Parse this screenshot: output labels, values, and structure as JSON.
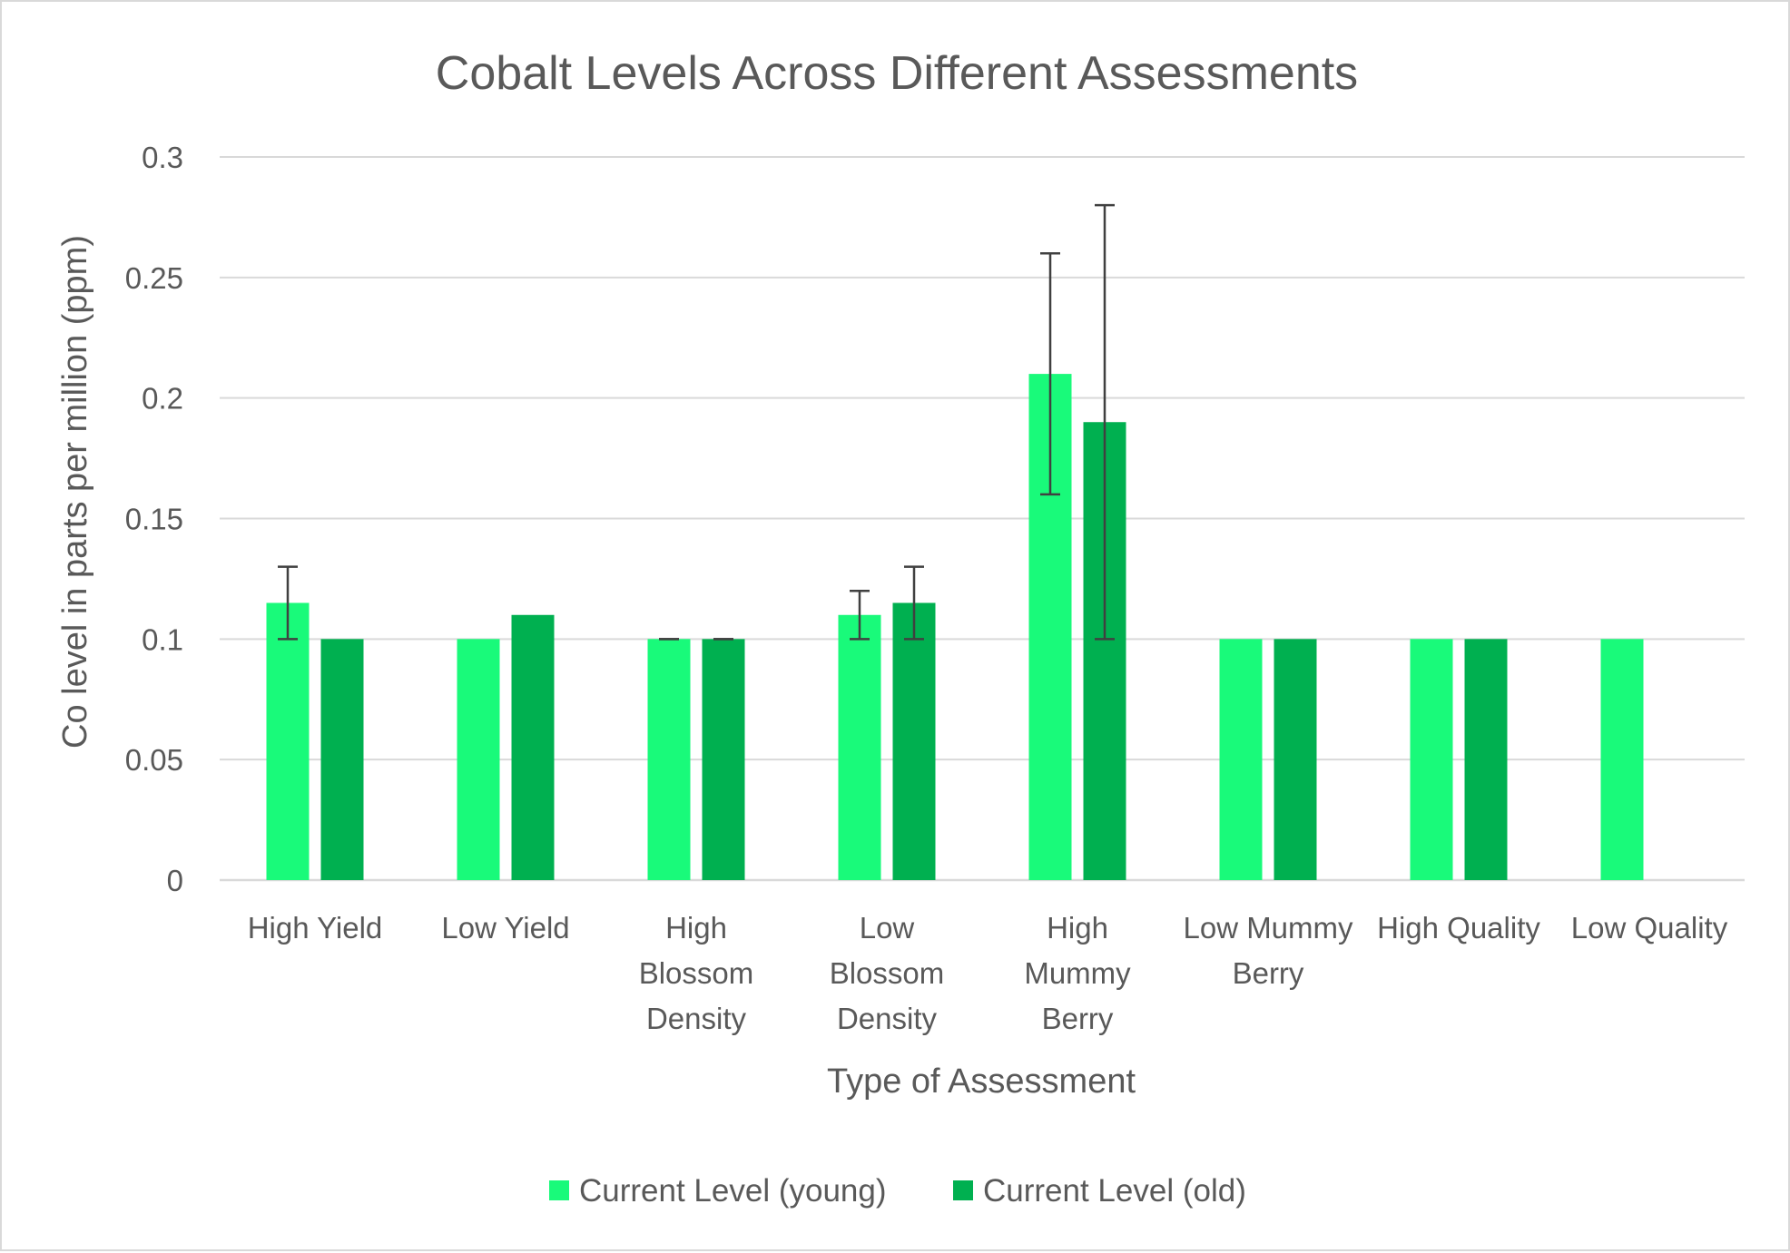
{
  "chart_data": {
    "type": "bar",
    "title": "Cobalt Levels Across Different Assessments",
    "xlabel": "Type of Assessment",
    "ylabel": "Co level in parts per million (ppm)",
    "ylim": [
      0,
      0.3
    ],
    "yticks": [
      "0",
      "0.05",
      "0.1",
      "0.15",
      "0.2",
      "0.25",
      "0.3"
    ],
    "grid": true,
    "legend_position": "bottom",
    "categories": [
      [
        "High Yield"
      ],
      [
        "Low Yield"
      ],
      [
        "High",
        "Blossom",
        "Density"
      ],
      [
        "Low",
        "Blossom",
        "Density"
      ],
      [
        "High",
        "Mummy",
        "Berry"
      ],
      [
        "Low Mummy",
        "Berry"
      ],
      [
        "High Quality"
      ],
      [
        "Low Quality"
      ]
    ],
    "series": [
      {
        "name": "Current Level (young)",
        "color": "#19fa7a",
        "values": [
          0.115,
          0.1,
          0.1,
          0.11,
          0.21,
          0.1,
          0.1,
          0.1
        ],
        "error_low": [
          0.1,
          null,
          0.1,
          0.1,
          0.16,
          null,
          null,
          null
        ],
        "error_high": [
          0.13,
          null,
          0.1,
          0.12,
          0.26,
          null,
          null,
          null
        ]
      },
      {
        "name": "Current Level (old)",
        "color": "#00b050",
        "values": [
          0.1,
          0.11,
          0.1,
          0.115,
          0.19,
          0.1,
          0.1,
          null
        ],
        "error_low": [
          null,
          null,
          0.1,
          0.1,
          0.1,
          null,
          null,
          null
        ],
        "error_high": [
          null,
          null,
          0.1,
          0.13,
          0.28,
          null,
          null,
          null
        ]
      }
    ]
  }
}
